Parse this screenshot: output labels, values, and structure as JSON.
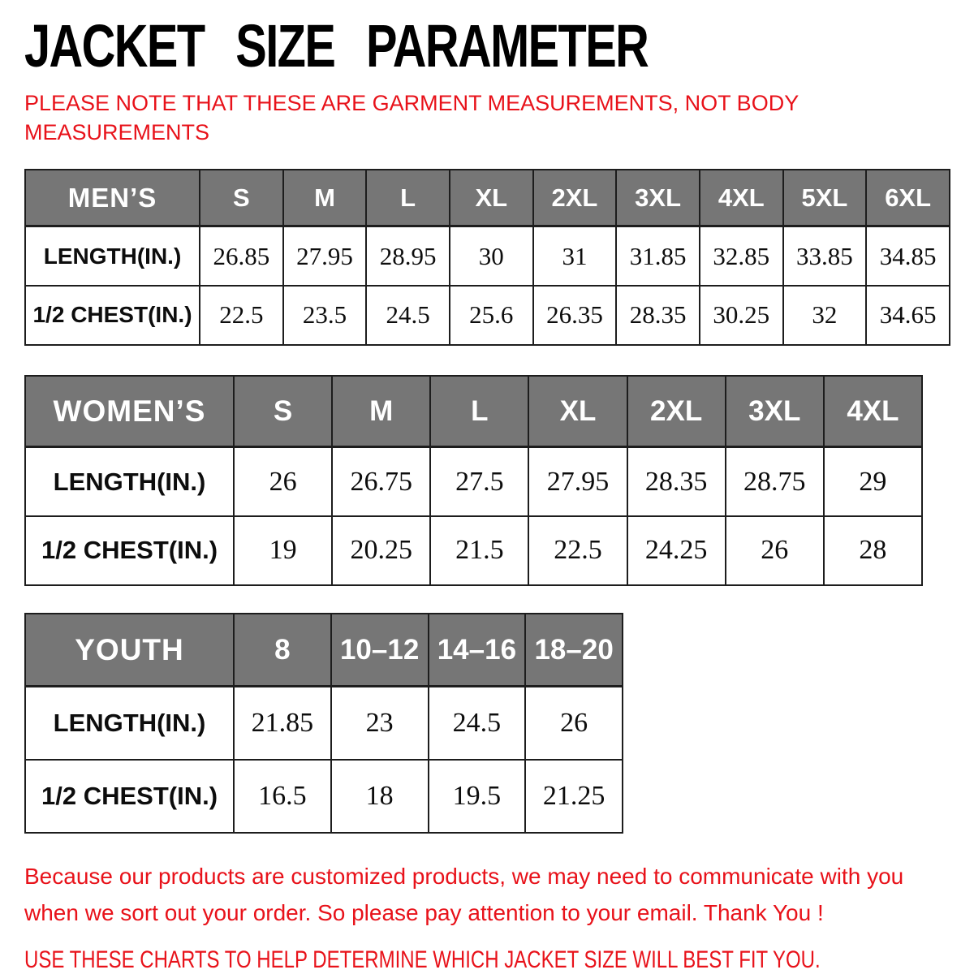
{
  "page": {
    "title": "JACKET SIZE PARAMETER",
    "note_lines": [
      "PLEASE NOTE THAT THESE ARE GARMENT MEASUREMENTS, NOT BODY",
      "MEASUREMENTS"
    ],
    "footer_para_lines": [
      "Because our products are customized products, we may need to communicate with you",
      "when we sort out your order. So please pay attention to your email. Thank You !"
    ],
    "footer_instruction": "USE THESE CHARTS TO HELP DETERMINE WHICH JACKET SIZE WILL BEST FIT YOU."
  },
  "colors": {
    "accent_red": "#e8121a",
    "header_gray": "#767676",
    "border_black": "#1d1d1d"
  },
  "tables": [
    {
      "id": "mens",
      "category": "MEN’S",
      "sizes": [
        "S",
        "M",
        "L",
        "XL",
        "2XL",
        "3XL",
        "4XL",
        "5XL",
        "6XL"
      ],
      "rows": [
        {
          "label": "LENGTH(IN.)",
          "values": [
            "26.85",
            "27.95",
            "28.95",
            "30",
            "31",
            "31.85",
            "32.85",
            "33.85",
            "34.85"
          ]
        },
        {
          "label": "1/2 CHEST(IN.)",
          "values": [
            "22.5",
            "23.5",
            "24.5",
            "25.6",
            "26.35",
            "28.35",
            "30.25",
            "32",
            "34.65"
          ]
        }
      ]
    },
    {
      "id": "womens",
      "category": "WOMEN’S",
      "sizes": [
        "S",
        "M",
        "L",
        "XL",
        "2XL",
        "3XL",
        "4XL"
      ],
      "rows": [
        {
          "label": "LENGTH(IN.)",
          "values": [
            "26",
            "26.75",
            "27.5",
            "27.95",
            "28.35",
            "28.75",
            "29"
          ]
        },
        {
          "label": "1/2 CHEST(IN.)",
          "values": [
            "19",
            "20.25",
            "21.5",
            "22.5",
            "24.25",
            "26",
            "28"
          ]
        }
      ]
    },
    {
      "id": "youth",
      "category": "YOUTH",
      "sizes": [
        "8",
        "10–12",
        "14–16",
        "18–20"
      ],
      "rows": [
        {
          "label": "LENGTH(IN.)",
          "values": [
            "21.85",
            "23",
            "24.5",
            "26"
          ]
        },
        {
          "label": "1/2 CHEST(IN.)",
          "values": [
            "16.5",
            "18",
            "19.5",
            "21.25"
          ]
        }
      ]
    }
  ]
}
